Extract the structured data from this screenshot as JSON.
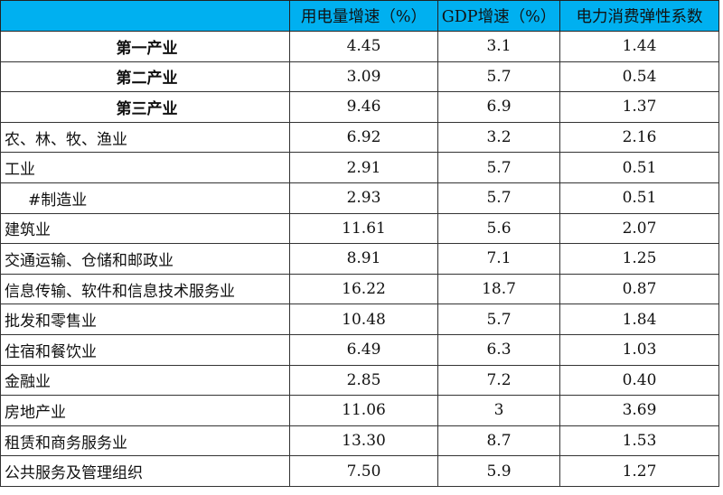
{
  "colors": {
    "header_bg": "#00B0F0"
  },
  "table": {
    "headers": [
      "",
      "用电量增速（%）",
      "GDP增速（%）",
      "电力消费弹性系数"
    ],
    "rows": [
      {
        "name": "第一产业",
        "style": "center",
        "elec": "4.45",
        "gdp": "3.1",
        "elastic": "1.44"
      },
      {
        "name": "第二产业",
        "style": "center",
        "elec": "3.09",
        "gdp": "5.7",
        "elastic": "0.54"
      },
      {
        "name": "第三产业",
        "style": "center",
        "elec": "9.46",
        "gdp": "6.9",
        "elastic": "1.37"
      },
      {
        "name": "农、林、牧、渔业",
        "style": "",
        "elec": "6.92",
        "gdp": "3.2",
        "elastic": "2.16"
      },
      {
        "name": "工业",
        "style": "",
        "elec": "2.91",
        "gdp": "5.7",
        "elastic": "0.51"
      },
      {
        "name": "#制造业",
        "style": "indent",
        "elec": "2.93",
        "gdp": "5.7",
        "elastic": "0.51"
      },
      {
        "name": "建筑业",
        "style": "",
        "elec": "11.61",
        "gdp": "5.6",
        "elastic": "2.07"
      },
      {
        "name": "交通运输、仓储和邮政业",
        "style": "",
        "elec": "8.91",
        "gdp": "7.1",
        "elastic": "1.25"
      },
      {
        "name": "信息传输、软件和信息技术服务业",
        "style": "",
        "elec": "16.22",
        "gdp": "18.7",
        "elastic": "0.87"
      },
      {
        "name": "批发和零售业",
        "style": "",
        "elec": "10.48",
        "gdp": "5.7",
        "elastic": "1.84"
      },
      {
        "name": "住宿和餐饮业",
        "style": "",
        "elec": "6.49",
        "gdp": "6.3",
        "elastic": "1.03"
      },
      {
        "name": "金融业",
        "style": "",
        "elec": "2.85",
        "gdp": "7.2",
        "elastic": "0.40"
      },
      {
        "name": "房地产业",
        "style": "",
        "elec": "11.06",
        "gdp": "3",
        "elastic": "3.69"
      },
      {
        "name": "租赁和商务服务业",
        "style": "",
        "elec": "13.30",
        "gdp": "8.7",
        "elastic": "1.53"
      },
      {
        "name": "公共服务及管理组织",
        "style": "",
        "elec": "7.50",
        "gdp": "5.9",
        "elastic": "1.27"
      }
    ]
  }
}
